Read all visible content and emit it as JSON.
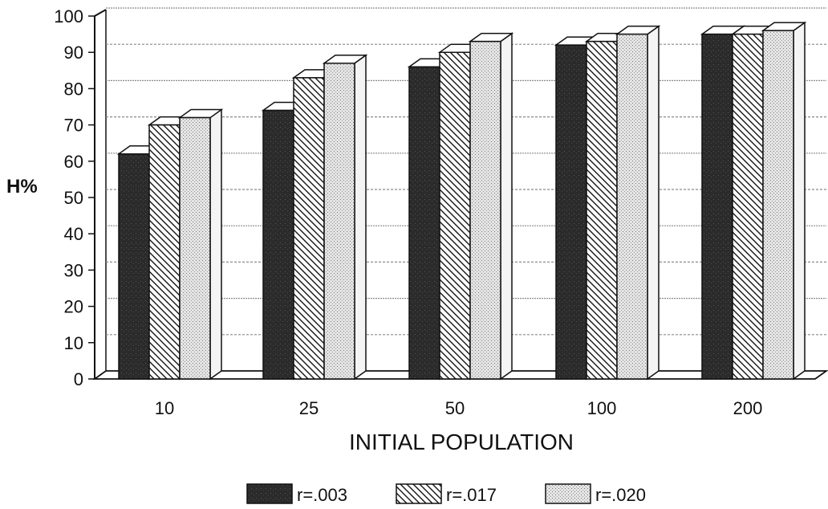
{
  "chart_data": {
    "type": "bar",
    "title": "",
    "xlabel": "INITIAL POPULATION",
    "ylabel": "H%",
    "categories": [
      "10",
      "25",
      "50",
      "100",
      "200"
    ],
    "ylim": [
      0,
      100
    ],
    "yticks": [
      0,
      10,
      20,
      30,
      40,
      50,
      60,
      70,
      80,
      90,
      100
    ],
    "grid": true,
    "legend_position": "bottom",
    "series": [
      {
        "name": "r=.003",
        "pattern": "dark-solid",
        "values": [
          62,
          74,
          86,
          92,
          95
        ]
      },
      {
        "name": "r=.017",
        "pattern": "diagonal-hatch",
        "values": [
          70,
          83,
          90,
          93,
          95
        ]
      },
      {
        "name": "r=.020",
        "pattern": "light-dots",
        "values": [
          72,
          87,
          93,
          95,
          96
        ]
      }
    ]
  },
  "colors": {
    "ink": "#111111",
    "dark_fill": "#2b2b2b",
    "hatch_bg": "#ffffff",
    "dot_bg": "#e2e2e2",
    "grid": "#999999"
  }
}
